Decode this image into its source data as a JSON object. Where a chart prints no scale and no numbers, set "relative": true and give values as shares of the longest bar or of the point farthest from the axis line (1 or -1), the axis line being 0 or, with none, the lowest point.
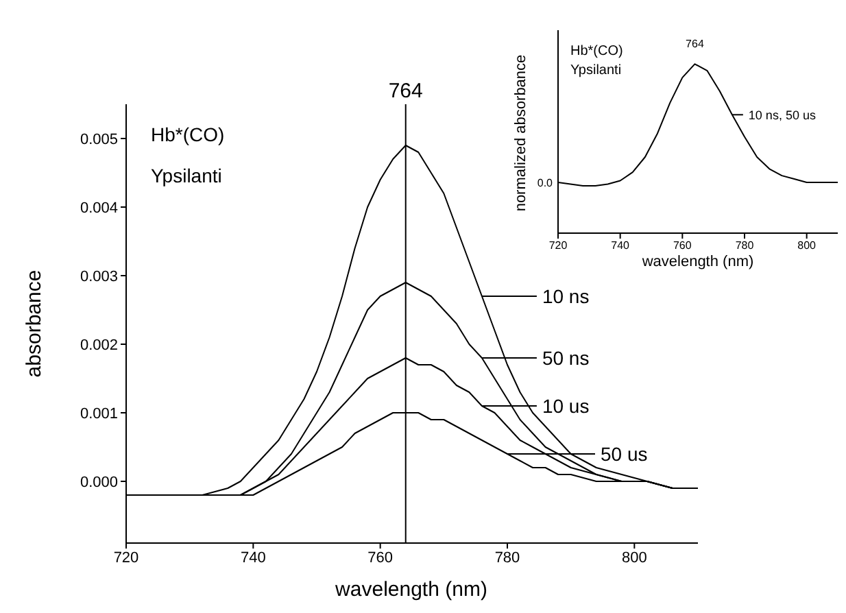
{
  "chart_data": [
    {
      "type": "line",
      "xlabel": "wavelength (nm)",
      "ylabel": "absorbance",
      "annotations": [
        "Hb*(CO)",
        "Ypsilanti"
      ],
      "x": [
        720,
        724,
        728,
        732,
        736,
        738,
        740,
        742,
        744,
        746,
        748,
        750,
        752,
        754,
        756,
        758,
        760,
        762,
        764,
        766,
        768,
        770,
        772,
        774,
        776,
        778,
        780,
        782,
        784,
        786,
        788,
        790,
        794,
        798,
        802,
        806,
        810
      ],
      "series": [
        {
          "name": "10 ns",
          "color": "#000000",
          "values": [
            -0.0002,
            -0.0002,
            -0.0002,
            -0.0002,
            -0.0001,
            0.0,
            0.0002,
            0.0004,
            0.0006,
            0.0009,
            0.0012,
            0.0016,
            0.0021,
            0.0027,
            0.0034,
            0.004,
            0.0044,
            0.0047,
            0.0049,
            0.0048,
            0.0045,
            0.0042,
            0.0037,
            0.0032,
            0.0027,
            0.0022,
            0.0017,
            0.0013,
            0.001,
            0.0008,
            0.0006,
            0.0004,
            0.0002,
            0.0001,
            0.0,
            -0.0001,
            -0.0001
          ]
        },
        {
          "name": "50 ns",
          "color": "#000000",
          "values": [
            -0.0002,
            -0.0002,
            -0.0002,
            -0.0002,
            -0.0002,
            -0.0002,
            -0.0001,
            0.0,
            0.0002,
            0.0004,
            0.0007,
            0.001,
            0.0013,
            0.0017,
            0.0021,
            0.0025,
            0.0027,
            0.0028,
            0.0029,
            0.0028,
            0.0027,
            0.0025,
            0.0023,
            0.002,
            0.0018,
            0.0015,
            0.0012,
            0.0009,
            0.0007,
            0.0005,
            0.0004,
            0.0003,
            0.0001,
            0.0,
            0.0,
            -0.0001,
            -0.0001
          ]
        },
        {
          "name": "10 us",
          "color": "#000000",
          "values": [
            -0.0002,
            -0.0002,
            -0.0002,
            -0.0002,
            -0.0002,
            -0.0002,
            -0.0001,
            0.0,
            0.0001,
            0.0003,
            0.0005,
            0.0007,
            0.0009,
            0.0011,
            0.0013,
            0.0015,
            0.0016,
            0.0017,
            0.0018,
            0.0017,
            0.0017,
            0.0016,
            0.0014,
            0.0013,
            0.0011,
            0.001,
            0.0008,
            0.0006,
            0.0005,
            0.0004,
            0.0003,
            0.0002,
            0.0001,
            0.0,
            0.0,
            -0.0001,
            -0.0001
          ]
        },
        {
          "name": "50 us",
          "color": "#000000",
          "values": [
            -0.0002,
            -0.0002,
            -0.0002,
            -0.0002,
            -0.0002,
            -0.0002,
            -0.0002,
            -0.0001,
            0.0,
            0.0001,
            0.0002,
            0.0003,
            0.0004,
            0.0005,
            0.0007,
            0.0008,
            0.0009,
            0.001,
            0.001,
            0.001,
            0.0009,
            0.0009,
            0.0008,
            0.0007,
            0.0006,
            0.0005,
            0.0004,
            0.0003,
            0.0002,
            0.0002,
            0.0001,
            0.0001,
            0.0,
            0.0,
            0.0,
            -0.0001,
            -0.0001
          ]
        }
      ],
      "xlim": [
        720,
        810
      ],
      "xticks": [
        720,
        740,
        760,
        780,
        800
      ],
      "ylim": [
        -0.0009,
        0.0055
      ],
      "yticks": [
        {
          "value": 0,
          "label": "0.000"
        },
        {
          "value": 0.001,
          "label": "0.001"
        },
        {
          "value": 0.002,
          "label": "0.002"
        },
        {
          "value": 0.003,
          "label": "0.003"
        },
        {
          "value": 0.004,
          "label": "0.004"
        },
        {
          "value": 0.005,
          "label": "0.005"
        }
      ],
      "ref_lines": [
        {
          "axis": "x",
          "value": 764,
          "label": "764",
          "color": "#000000"
        }
      ],
      "legend": "right",
      "grid": false,
      "marker": "none",
      "line_style": "solid"
    },
    {
      "type": "line",
      "relative": true,
      "xlabel": "wavelength (nm)",
      "ylabel": "normalized absorbance",
      "annotations": [
        "Hb*(CO)",
        "Ypsilanti",
        {
          "text": "764",
          "x": 764,
          "y": 1
        },
        {
          "text": "0.0",
          "x": 720,
          "y": 0.3
        }
      ],
      "x": [
        720,
        724,
        728,
        732,
        736,
        740,
        744,
        748,
        752,
        756,
        760,
        764,
        768,
        772,
        776,
        780,
        784,
        788,
        792,
        796,
        800,
        806,
        810
      ],
      "series": [
        {
          "name": "10 ns, 50 us",
          "color": "#000000",
          "values": [
            0.3,
            0.29,
            0.28,
            0.28,
            0.29,
            0.31,
            0.36,
            0.45,
            0.59,
            0.77,
            0.92,
            1.0,
            0.96,
            0.84,
            0.7,
            0.57,
            0.45,
            0.38,
            0.34,
            0.32,
            0.3,
            0.3,
            0.3
          ]
        }
      ],
      "xlim": [
        720,
        810
      ],
      "xticks": [
        720,
        740,
        760,
        780,
        800
      ],
      "legend": "top right",
      "grid": false,
      "marker": "none",
      "line_style": "solid"
    }
  ]
}
